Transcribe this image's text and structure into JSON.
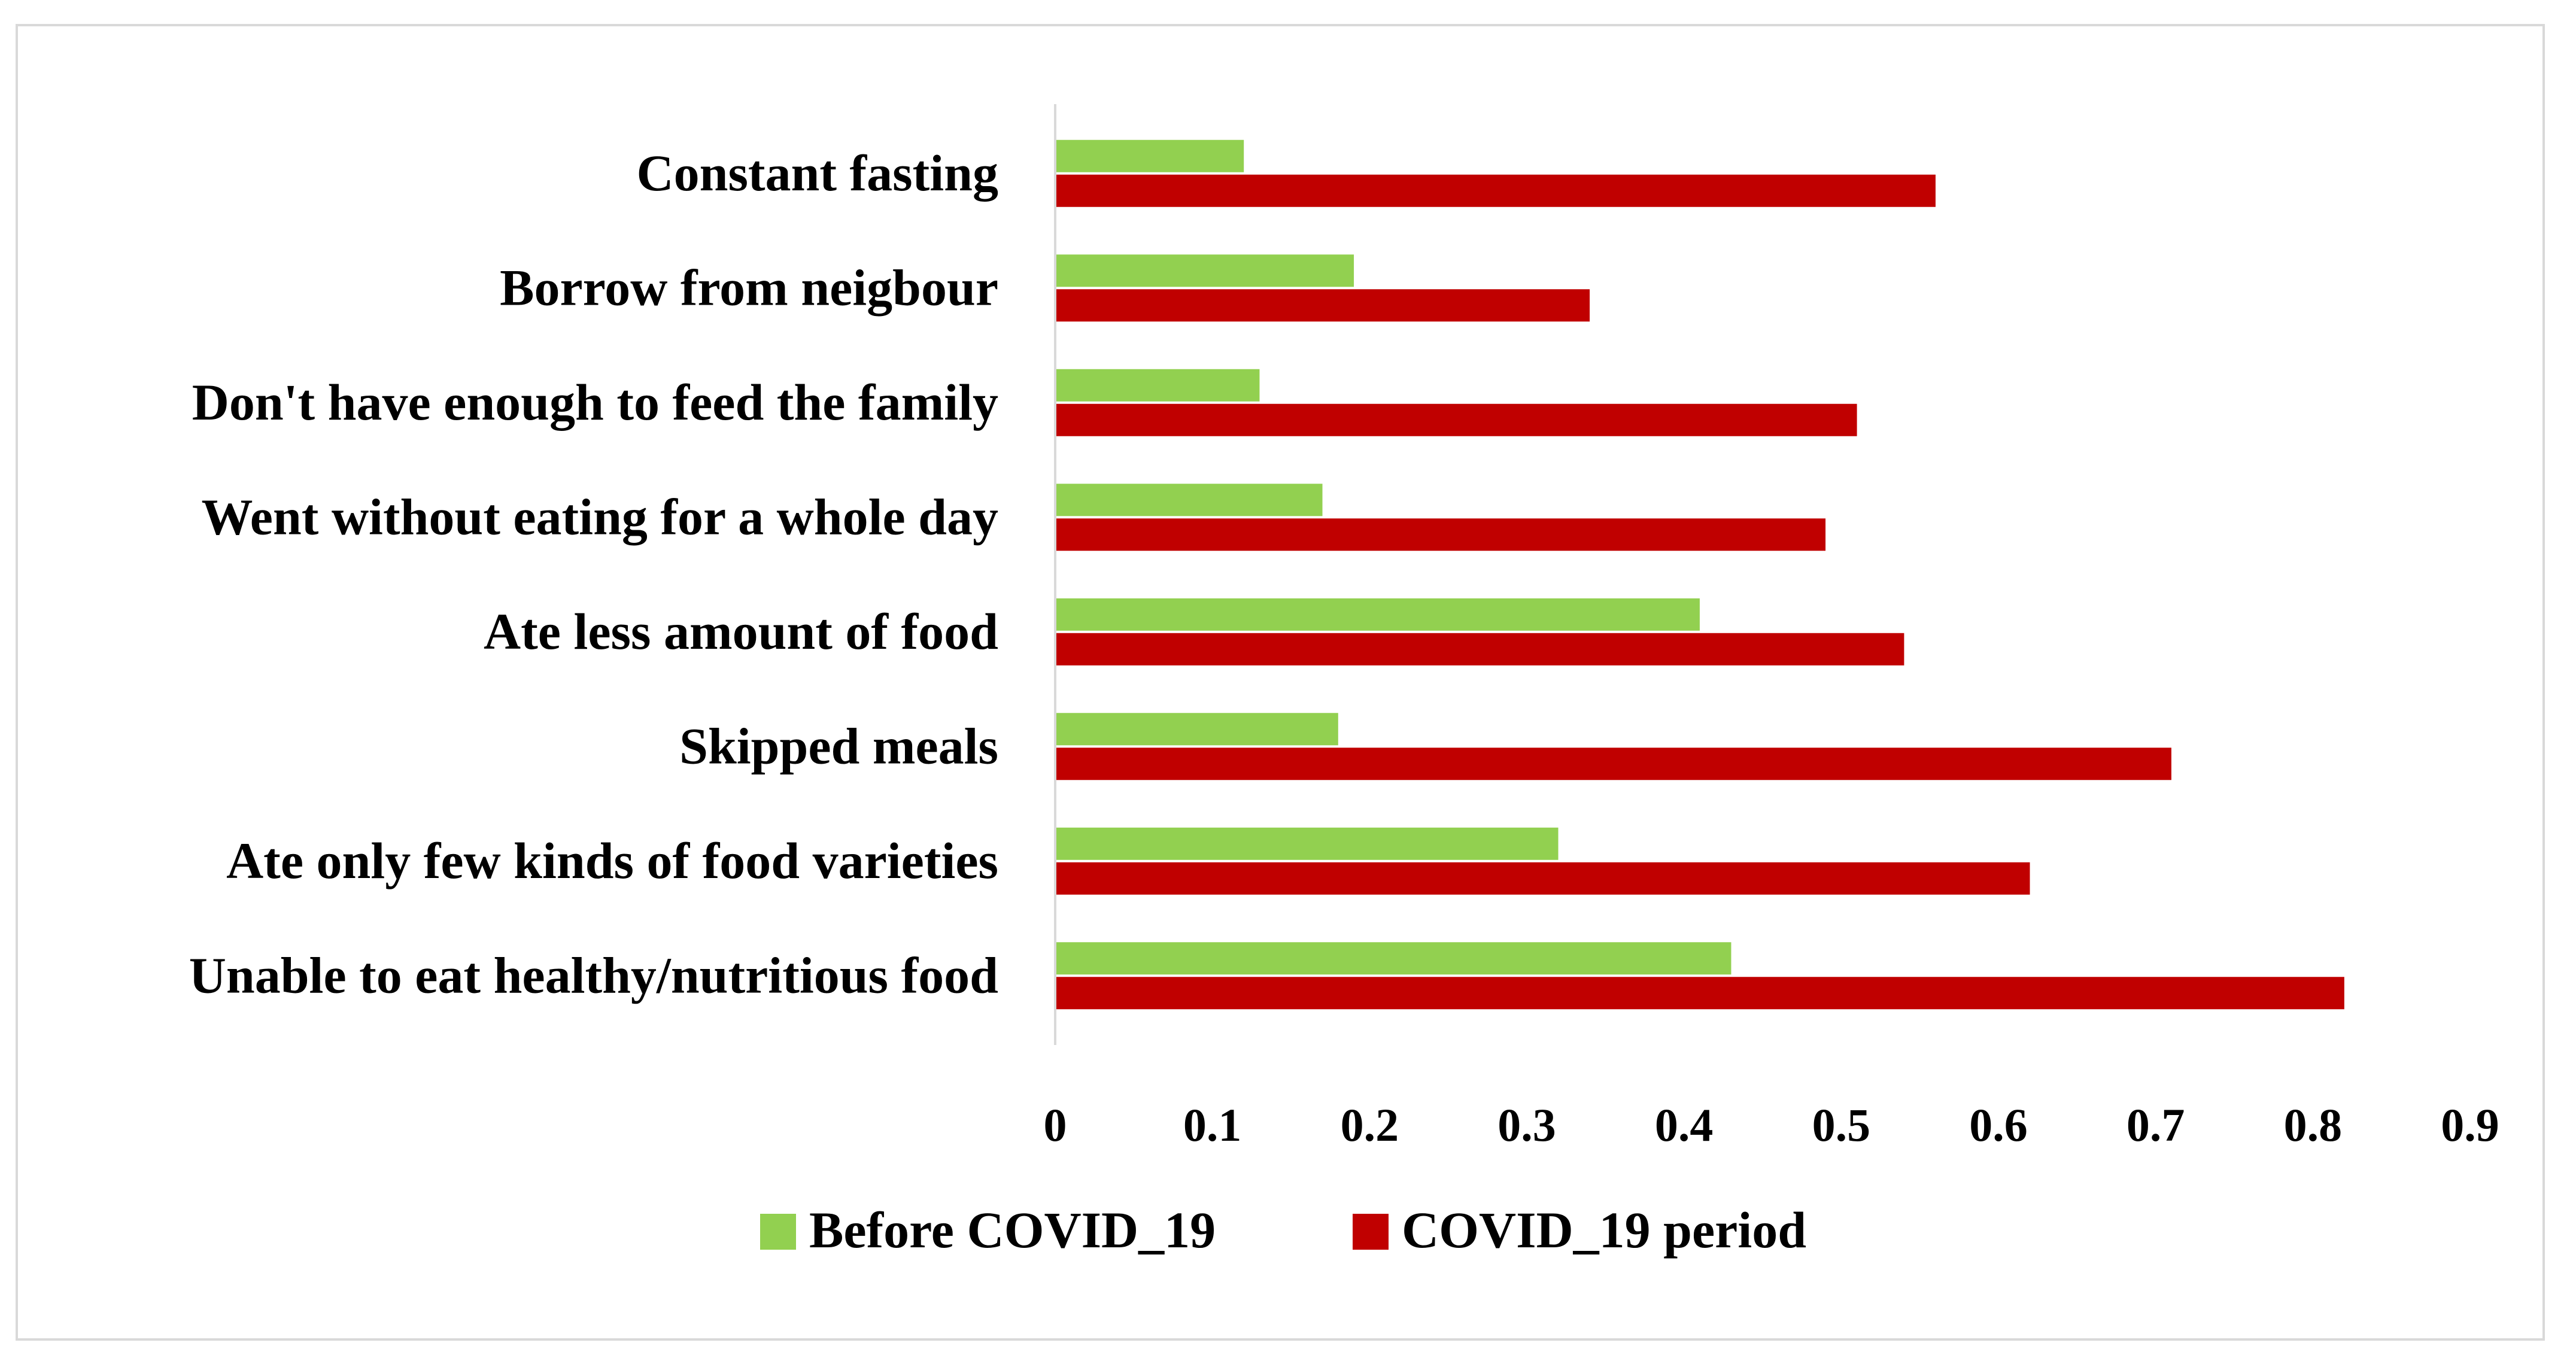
{
  "chart_data": {
    "type": "bar",
    "orientation": "horizontal",
    "title": "",
    "xlabel": "",
    "ylabel": "",
    "categories": [
      "Unable to eat healthy/nutritious food",
      "Ate only few kinds of food varieties",
      "Skipped meals",
      "Ate less amount of food",
      "Went without eating for a whole day",
      "Don't have enough to feed the family",
      "Borrow from neigbour",
      "Constant fasting"
    ],
    "series": [
      {
        "name": "Before COVID_19",
        "color": "#92d050",
        "values": [
          0.43,
          0.32,
          0.18,
          0.41,
          0.17,
          0.13,
          0.19,
          0.12
        ]
      },
      {
        "name": "COVID_19 period",
        "color": "#c00000",
        "values": [
          0.82,
          0.62,
          0.71,
          0.54,
          0.49,
          0.51,
          0.34,
          0.56
        ]
      }
    ],
    "xlim": [
      0,
      0.9
    ],
    "xticks": [
      "0",
      "0.1",
      "0.2",
      "0.3",
      "0.4",
      "0.5",
      "0.6",
      "0.7",
      "0.8",
      "0.9"
    ],
    "grid": false,
    "legend": "bottom-center"
  }
}
